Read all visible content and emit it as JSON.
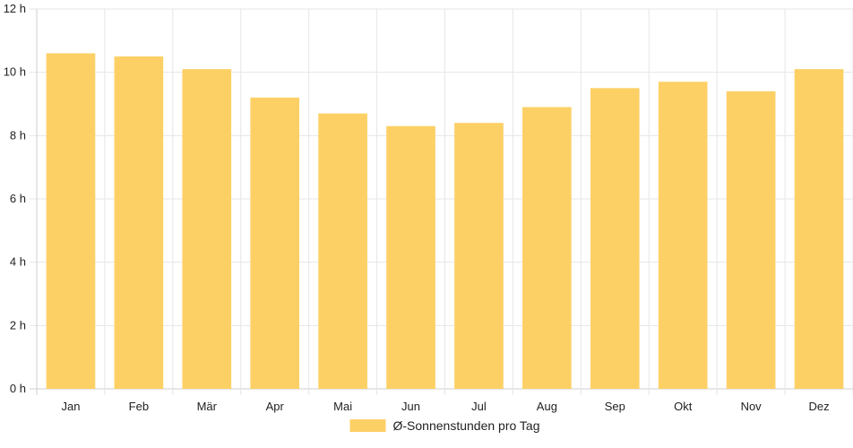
{
  "chart_data": {
    "type": "bar",
    "categories": [
      "Jan",
      "Feb",
      "Mär",
      "Apr",
      "Mai",
      "Jun",
      "Jul",
      "Aug",
      "Sep",
      "Okt",
      "Nov",
      "Dez"
    ],
    "series": [
      {
        "name": "Ø-Sonnenstunden pro Tag",
        "values": [
          10.6,
          10.5,
          10.1,
          9.2,
          8.7,
          8.3,
          8.4,
          8.9,
          9.5,
          9.7,
          9.4,
          10.1
        ],
        "color": "#fdd066"
      }
    ],
    "y_ticks": [
      "0 h",
      "2 h",
      "4 h",
      "6 h",
      "8 h",
      "10 h",
      "12 h"
    ],
    "ylim": [
      0,
      12
    ],
    "grid": true,
    "legend_position": "bottom"
  }
}
